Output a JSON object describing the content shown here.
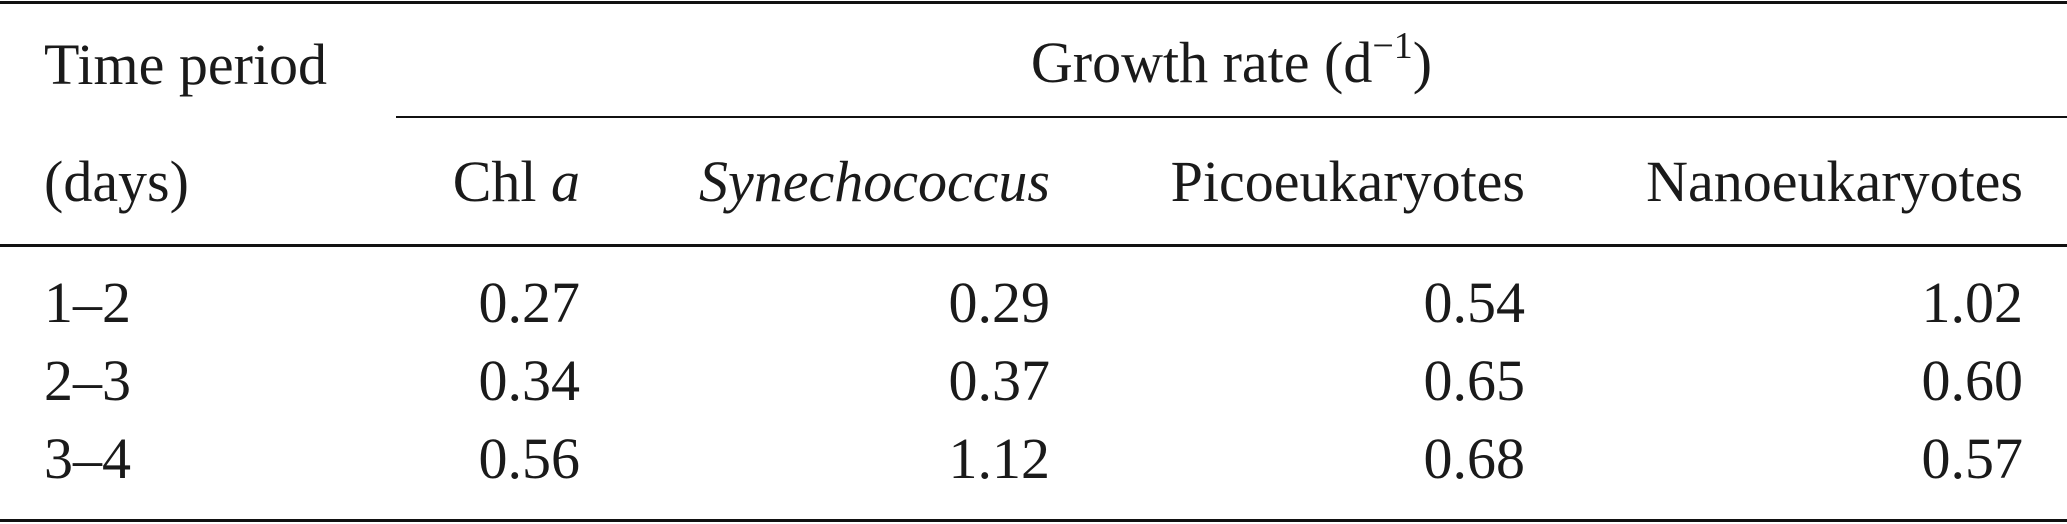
{
  "table": {
    "header": {
      "time_period_line1": "Time period",
      "time_period_line2": "(days)",
      "growth_rate_label": "Growth rate (d",
      "growth_rate_exponent": "−1",
      "growth_rate_close": ")",
      "columns": {
        "chl_prefix": "Chl ",
        "chl_suffix": "a",
        "synechococcus": "Synechococcus",
        "picoeukaryotes": "Picoeukaryotes",
        "nanoeukaryotes": "Nanoeukaryotes"
      }
    },
    "rows": [
      {
        "period": "1–2",
        "chl": "0.27",
        "syn": "0.29",
        "pico": "0.54",
        "nano": "1.02"
      },
      {
        "period": "2–3",
        "chl": "0.34",
        "syn": "0.37",
        "pico": "0.65",
        "nano": "0.60"
      },
      {
        "period": "3–4",
        "chl": "0.56",
        "syn": "1.12",
        "pico": "0.68",
        "nano": "0.57"
      }
    ]
  }
}
